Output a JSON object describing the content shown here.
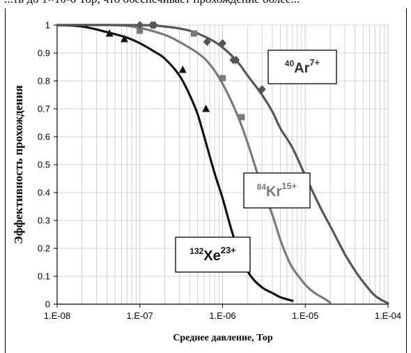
{
  "page": {
    "top_text": "...тв до 1×10-6 Тор, что обеспечивает прохождение более..."
  },
  "colors": {
    "xe": "#111111",
    "kr": "#7a7a7a",
    "ar": "#555555",
    "grid": "#c8c8c8",
    "axis": "#000000"
  },
  "chart_data": {
    "type": "line",
    "xlabel": "Среднее давление, Тор",
    "ylabel": "Эффективность прохождения",
    "xscale": "log",
    "xlim": [
      1e-08,
      0.0001
    ],
    "ylim": [
      0,
      1
    ],
    "x_tick_labels": [
      "1.E-08",
      "1.E-07",
      "1.E-06",
      "1.E-05",
      "1.E-04"
    ],
    "x_tick_values": [
      1e-08,
      1e-07,
      1e-06,
      1e-05,
      0.0001
    ],
    "y_tick_labels": [
      "0",
      "0.1",
      "0.2",
      "0.3",
      "0.4",
      "0.5",
      "0.6",
      "0.7",
      "0.8",
      "0.9",
      "1"
    ],
    "y_tick_values": [
      0,
      0.1,
      0.2,
      0.3,
      0.4,
      0.5,
      0.6,
      0.7,
      0.8,
      0.9,
      1
    ],
    "grid": true,
    "series": [
      {
        "key": "xe",
        "label_mass": "132",
        "label_elem": "Xe",
        "label_charge": "23+",
        "color": "#111111",
        "marker": "triangle",
        "curve": [
          [
            1e-08,
            1.0
          ],
          [
            2e-08,
            0.995
          ],
          [
            4e-08,
            0.975
          ],
          [
            7e-08,
            0.955
          ],
          [
            1e-07,
            0.935
          ],
          [
            1.5e-07,
            0.905
          ],
          [
            2e-07,
            0.88
          ],
          [
            3e-07,
            0.82
          ],
          [
            4e-07,
            0.75
          ],
          [
            5e-07,
            0.68
          ],
          [
            6e-07,
            0.6
          ],
          [
            8e-07,
            0.47
          ],
          [
            1e-06,
            0.38
          ],
          [
            1.3e-06,
            0.26
          ],
          [
            1.7e-06,
            0.16
          ],
          [
            2.2e-06,
            0.1
          ],
          [
            3e-06,
            0.06
          ],
          [
            4e-06,
            0.04
          ],
          [
            5e-06,
            0.025
          ],
          [
            7e-06,
            0.012
          ]
        ],
        "points": [
          [
            4.3e-08,
            0.97
          ],
          [
            6.5e-08,
            0.95
          ],
          [
            3.3e-07,
            0.84
          ],
          [
            6.3e-07,
            0.7
          ]
        ]
      },
      {
        "key": "kr",
        "label_mass": "84",
        "label_elem": "Kr",
        "label_charge": "15+",
        "color": "#7a7a7a",
        "marker": "square",
        "curve": [
          [
            1e-08,
            1.0
          ],
          [
            5e-08,
            1.0
          ],
          [
            1e-07,
            0.99
          ],
          [
            2e-07,
            0.965
          ],
          [
            3e-07,
            0.94
          ],
          [
            5e-07,
            0.9
          ],
          [
            7e-07,
            0.86
          ],
          [
            1e-06,
            0.79
          ],
          [
            1.5e-06,
            0.68
          ],
          [
            2e-06,
            0.58
          ],
          [
            2.5e-06,
            0.49
          ],
          [
            3e-06,
            0.42
          ],
          [
            4e-06,
            0.32
          ],
          [
            5e-06,
            0.23
          ],
          [
            6e-06,
            0.17
          ],
          [
            7e-06,
            0.13
          ],
          [
            1e-05,
            0.07
          ],
          [
            1.3e-05,
            0.04
          ],
          [
            1.7e-05,
            0.02
          ],
          [
            2e-05,
            0.005
          ]
        ],
        "points": [
          [
            1e-07,
            0.98
          ],
          [
            4.5e-07,
            0.97
          ],
          [
            1e-06,
            0.81
          ],
          [
            1.7e-06,
            0.67
          ]
        ]
      },
      {
        "key": "ar",
        "label_mass": "40",
        "label_elem": "Ar",
        "label_charge": "7+",
        "color": "#555555",
        "marker": "diamond",
        "curve": [
          [
            1e-08,
            1.0
          ],
          [
            1e-07,
            1.0
          ],
          [
            2e-07,
            0.995
          ],
          [
            4e-07,
            0.98
          ],
          [
            7e-07,
            0.95
          ],
          [
            1e-06,
            0.92
          ],
          [
            1.5e-06,
            0.87
          ],
          [
            2e-06,
            0.82
          ],
          [
            3e-06,
            0.75
          ],
          [
            4e-06,
            0.69
          ],
          [
            5e-06,
            0.63
          ],
          [
            7e-06,
            0.56
          ],
          [
            1e-05,
            0.46
          ],
          [
            1.5e-05,
            0.35
          ],
          [
            2e-05,
            0.28
          ],
          [
            3e-05,
            0.18
          ],
          [
            4e-05,
            0.12
          ],
          [
            5e-05,
            0.08
          ],
          [
            7e-05,
            0.03
          ],
          [
            0.0001,
            0.003
          ]
        ],
        "points": [
          [
            1e-07,
            1.0
          ],
          [
            1.4e-07,
            1.0
          ],
          [
            1.5e-07,
            1.0
          ],
          [
            6.5e-07,
            0.94
          ],
          [
            1e-06,
            0.935
          ],
          [
            1.35e-06,
            0.875
          ],
          [
            1.45e-06,
            0.875
          ],
          [
            3e-06,
            0.77
          ]
        ]
      }
    ]
  }
}
